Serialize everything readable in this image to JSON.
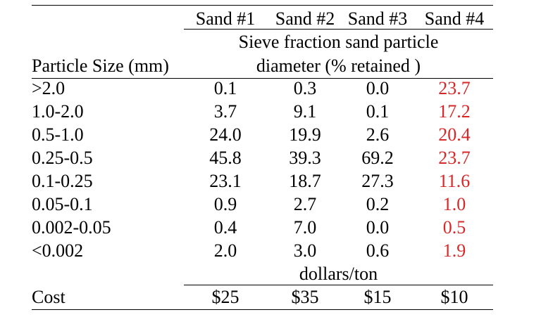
{
  "headers": {
    "columns": [
      "Sand #1",
      "Sand #2",
      "Sand #3",
      "Sand #4"
    ],
    "group_line1": "Sieve fraction sand particle",
    "group_line2": "diameter (% retained )",
    "row_header": "Particle Size (mm)"
  },
  "rows": [
    {
      "label": ">2.0",
      "values": [
        "0.1",
        "0.3",
        "0.0",
        "23.7"
      ]
    },
    {
      "label": "1.0-2.0",
      "values": [
        "3.7",
        "9.1",
        "0.1",
        "17.2"
      ]
    },
    {
      "label": "0.5-1.0",
      "values": [
        "24.0",
        "19.9",
        "2.6",
        "20.4"
      ]
    },
    {
      "label": "0.25-0.5",
      "values": [
        "45.8",
        "39.3",
        "69.2",
        "23.7"
      ]
    },
    {
      "label": "0.1-0.25",
      "values": [
        "23.1",
        "18.7",
        "27.3",
        "11.6"
      ]
    },
    {
      "label": "0.05-0.1",
      "values": [
        "0.9",
        "2.7",
        "0.2",
        "1.0"
      ]
    },
    {
      "label": "0.002-0.05",
      "values": [
        "0.4",
        "7.0",
        "0.0",
        "0.5"
      ]
    },
    {
      "label": "<0.002",
      "values": [
        "2.0",
        "3.0",
        "0.6",
        "1.9"
      ]
    }
  ],
  "units_label": "dollars/ton",
  "cost": {
    "label": "Cost",
    "values": [
      "$25",
      "$35",
      "$15",
      "$10"
    ]
  },
  "colors": {
    "highlight": "#d62828",
    "text": "#000000"
  }
}
